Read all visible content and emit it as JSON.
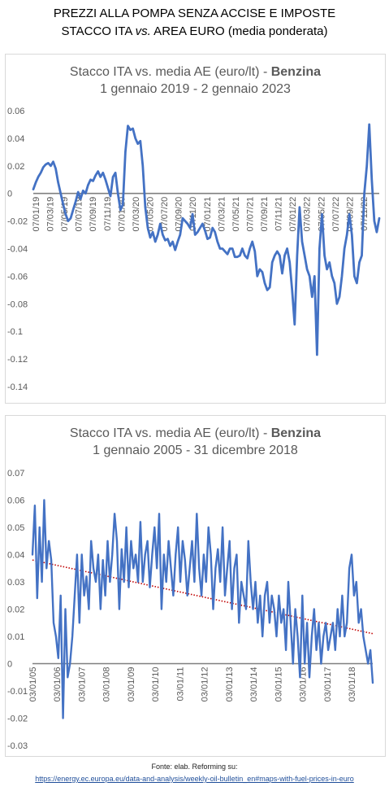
{
  "header": {
    "title_line1": "PREZZI ALLA POMPA SENZA ACCISE E IMPOSTE",
    "title_line2_pre": "STACCO ITA ",
    "title_line2_vs": "vs.",
    "title_line2_post": "  AREA EURO (media ponderata)"
  },
  "footer": {
    "source_label": "Fonte: elab. Reforming su:",
    "source_url": "https://energy.ec.europa.eu/data-and-analysis/weekly-oil-bulletin_en#maps-with-fuel-prices-in-euro"
  },
  "chart_data": [
    {
      "type": "line",
      "title_prefix": "Stacco ITA vs. media AE (euro/lt) - ",
      "title_bold": "Benzina",
      "subtitle": "1 gennaio 2019 - 2 gennaio 2023",
      "ylim": [
        -0.14,
        0.06
      ],
      "yticks": [
        "0.06",
        "0.04",
        "0.02",
        "0",
        "-0.02",
        "-0.04",
        "-0.06",
        "-0.08",
        "-0.1",
        "-0.12",
        "-0.14"
      ],
      "ytick_values": [
        0.06,
        0.04,
        0.02,
        0,
        -0.02,
        -0.04,
        -0.06,
        -0.08,
        -0.1,
        -0.12,
        -0.14
      ],
      "xticks": [
        "07/01/19",
        "07/03/19",
        "07/05/19",
        "07/07/19",
        "07/09/19",
        "07/11/19",
        "07/01/20",
        "07/03/20",
        "07/05/20",
        "07/07/20",
        "07/09/20",
        "07/11/20",
        "07/01/21",
        "07/03/21",
        "07/05/21",
        "07/07/21",
        "07/09/21",
        "07/11/21",
        "07/01/22",
        "07/03/22",
        "07/05/22",
        "07/07/22",
        "07/09/22",
        "07/11/22"
      ],
      "grid": false,
      "series_color": "#4472c4",
      "series": [
        {
          "values": [
            0.003,
            0.008,
            0.012,
            0.015,
            0.019,
            0.021,
            0.022,
            0.02,
            0.023,
            0.018,
            0.008,
            0.0,
            -0.008,
            -0.015,
            -0.02,
            -0.018,
            -0.012,
            -0.006,
            0.001,
            -0.004,
            0.002,
            0.0,
            0.006,
            0.01,
            0.009,
            0.013,
            0.016,
            0.012,
            0.015,
            0.01,
            0.004,
            -0.002,
            0.012,
            0.015,
            0.0,
            -0.012,
            -0.008,
            0.03,
            0.049,
            0.046,
            0.047,
            0.04,
            0.036,
            0.038,
            0.02,
            -0.01,
            -0.025,
            -0.032,
            -0.028,
            -0.035,
            -0.03,
            -0.022,
            -0.03,
            -0.034,
            -0.033,
            -0.038,
            -0.035,
            -0.041,
            -0.035,
            -0.03,
            -0.018,
            -0.02,
            -0.022,
            -0.025,
            -0.015,
            -0.03,
            -0.028,
            -0.025,
            -0.022,
            -0.027,
            -0.033,
            -0.032,
            -0.025,
            -0.028,
            -0.035,
            -0.04,
            -0.04,
            -0.042,
            -0.044,
            -0.04,
            -0.04,
            -0.046,
            -0.046,
            -0.045,
            -0.04,
            -0.045,
            -0.047,
            -0.04,
            -0.035,
            -0.042,
            -0.06,
            -0.055,
            -0.057,
            -0.065,
            -0.07,
            -0.068,
            -0.05,
            -0.045,
            -0.042,
            -0.045,
            -0.058,
            -0.045,
            -0.04,
            -0.05,
            -0.07,
            -0.095,
            -0.045,
            -0.01,
            -0.035,
            -0.045,
            -0.055,
            -0.06,
            -0.075,
            -0.06,
            -0.117,
            -0.04,
            -0.015,
            -0.045,
            -0.055,
            -0.05,
            -0.06,
            -0.065,
            -0.08,
            -0.075,
            -0.06,
            -0.04,
            -0.03,
            -0.015,
            -0.03,
            -0.06,
            -0.065,
            -0.05,
            -0.045,
            0.0,
            0.02,
            0.05,
            0.01,
            -0.02,
            -0.028,
            -0.018
          ]
        }
      ]
    },
    {
      "type": "line",
      "title_prefix": "Stacco ITA vs. media AE (euro/lt) - ",
      "title_bold": "Benzina",
      "subtitle": "1 gennaio 2005 - 31 dicembre 2018",
      "ylim": [
        -0.03,
        0.07
      ],
      "yticks": [
        "0.07",
        "0.06",
        "0.05",
        "0.04",
        "0.03",
        "0.02",
        "0.01",
        "0",
        "-0.01",
        "-0.02",
        "-0.03"
      ],
      "ytick_values": [
        0.07,
        0.06,
        0.05,
        0.04,
        0.03,
        0.02,
        0.01,
        0,
        -0.01,
        -0.02,
        -0.03
      ],
      "xticks": [
        "03/01/05",
        "03/01/06",
        "03/01/07",
        "03/01/08",
        "03/01/09",
        "03/01/10",
        "03/01/11",
        "03/01/12",
        "03/01/13",
        "03/01/14",
        "03/01/15",
        "03/01/16",
        "03/01/17",
        "03/01/18"
      ],
      "grid": false,
      "series_color": "#4472c4",
      "trendline": {
        "style": "dotted",
        "color": "#c00000",
        "start": 0.038,
        "end": 0.011
      },
      "series": [
        {
          "values": [
            0.04,
            0.058,
            0.024,
            0.05,
            0.03,
            0.06,
            0.035,
            0.045,
            0.038,
            0.015,
            0.01,
            0.002,
            0.025,
            -0.02,
            0.02,
            -0.005,
            0.0,
            0.01,
            0.025,
            0.04,
            0.015,
            0.04,
            0.025,
            0.032,
            0.02,
            0.045,
            0.035,
            0.03,
            0.04,
            0.02,
            0.038,
            0.025,
            0.045,
            0.03,
            0.04,
            0.055,
            0.045,
            0.02,
            0.042,
            0.03,
            0.05,
            0.028,
            0.045,
            0.035,
            0.04,
            0.03,
            0.052,
            0.03,
            0.04,
            0.045,
            0.028,
            0.04,
            0.05,
            0.035,
            0.055,
            0.02,
            0.04,
            0.03,
            0.045,
            0.035,
            0.025,
            0.04,
            0.05,
            0.03,
            0.045,
            0.038,
            0.025,
            0.035,
            0.045,
            0.03,
            0.055,
            0.035,
            0.025,
            0.04,
            0.03,
            0.05,
            0.04,
            0.02,
            0.035,
            0.042,
            0.03,
            0.05,
            0.025,
            0.035,
            0.045,
            0.02,
            0.035,
            0.04,
            0.015,
            0.03,
            0.025,
            0.02,
            0.045,
            0.03,
            0.02,
            0.03,
            0.015,
            0.025,
            0.01,
            0.025,
            0.03,
            0.015,
            0.025,
            0.02,
            0.01,
            0.025,
            0.015,
            0.02,
            0.005,
            0.03,
            0.015,
            0.0,
            0.02,
            0.01,
            -0.005,
            0.025,
            0.0,
            0.015,
            -0.005,
            0.01,
            0.02,
            0.005,
            0.015,
            0.0,
            0.01,
            0.015,
            0.005,
            0.01,
            0.015,
            0.005,
            0.02,
            0.01,
            0.025,
            0.01,
            0.015,
            0.035,
            0.04,
            0.025,
            0.03,
            0.015,
            0.02,
            0.01,
            0.005,
            0.0,
            0.005,
            -0.007
          ]
        }
      ]
    }
  ]
}
